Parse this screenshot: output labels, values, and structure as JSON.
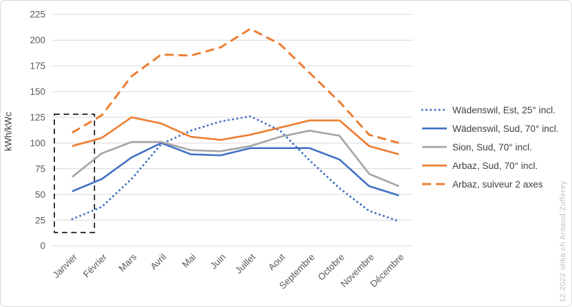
{
  "chart_data": {
    "type": "line",
    "title": "",
    "ylabel": "kWh/kWc",
    "xlabel": "",
    "ylim": [
      0,
      225
    ],
    "ytick_step": 25,
    "grid": true,
    "legend_position": "right",
    "categories": [
      "Janvier",
      "Février",
      "Mars",
      "Avril",
      "Mai",
      "Juin",
      "Juillet",
      "Aout",
      "Septembre",
      "Octobre",
      "Novembre",
      "Décembre"
    ],
    "series": [
      {
        "name": "Wädenswil, Est, 25° incl.",
        "slug": "wadenswil-est-25",
        "color": "#4472C4",
        "style": "dotted",
        "values": [
          26,
          38,
          65,
          99,
          112,
          121,
          126,
          112,
          83,
          56,
          34,
          24
        ]
      },
      {
        "name": "Wädenswil, Sud, 70° incl.",
        "slug": "wadenswil-sud-70",
        "color": "#4472C4",
        "style": "solid",
        "values": [
          53,
          65,
          86,
          100,
          89,
          88,
          95,
          95,
          95,
          84,
          58,
          49
        ]
      },
      {
        "name": "Sion, Sud, 70° incl.",
        "slug": "sion-sud-70",
        "color": "#A5A5A5",
        "style": "solid",
        "values": [
          67,
          90,
          101,
          101,
          93,
          92,
          97,
          106,
          112,
          107,
          70,
          58
        ]
      },
      {
        "name": "Arbaz, Sud, 70° incl.",
        "slug": "arbaz-sud-70",
        "color": "#ED7D31",
        "style": "solid",
        "values": [
          97,
          105,
          125,
          119,
          106,
          103,
          108,
          115,
          122,
          122,
          97,
          89
        ]
      },
      {
        "name": "Arbaz, suiveur 2 axes",
        "slug": "arbaz-suiveur-2-axes",
        "color": "#ED7D31",
        "style": "dashed",
        "values": [
          110,
          127,
          165,
          186,
          185,
          193,
          211,
          196,
          168,
          140,
          108,
          100
        ]
      }
    ],
    "annotation": {
      "shape": "dashed-rectangle",
      "color": "#000000",
      "months": [
        "Janvier",
        "Février"
      ],
      "value_range": [
        13,
        128
      ]
    }
  },
  "watermark": "12.2022 olika.ch Arnaud Zufferey",
  "colors": {
    "gridline": "#D9D9D9",
    "axis_text": "#595959",
    "legend_text": "#404040",
    "blue": "#4472C4",
    "gray": "#A5A5A5",
    "orange": "#ED7D31"
  }
}
